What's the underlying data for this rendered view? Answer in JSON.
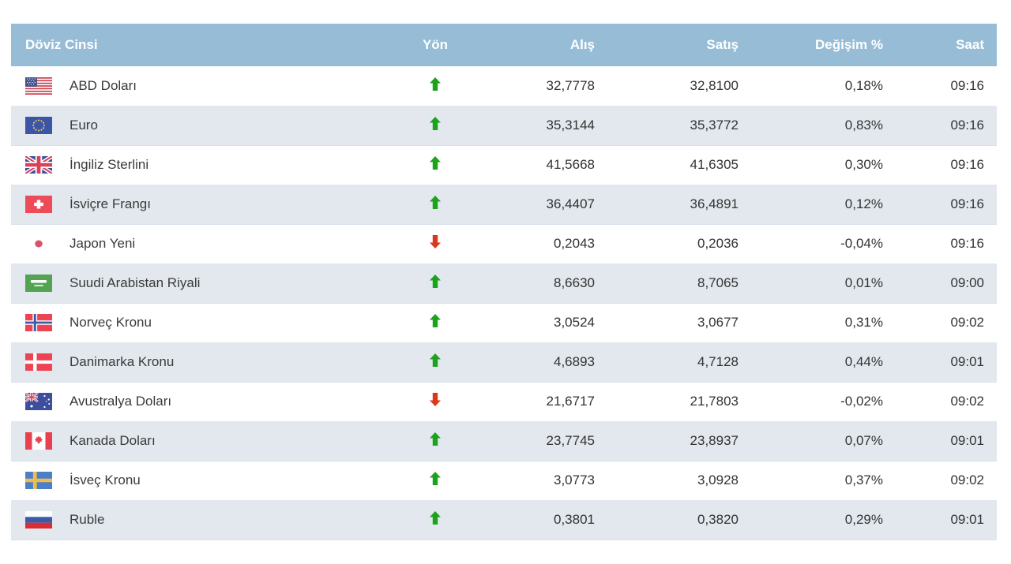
{
  "chart_data": {
    "type": "table",
    "columns": [
      {
        "key": "currency",
        "label": "Döviz Cinsi"
      },
      {
        "key": "direction",
        "label": "Yön"
      },
      {
        "key": "buy",
        "label": "Alış"
      },
      {
        "key": "sell",
        "label": "Satış"
      },
      {
        "key": "change",
        "label": "Değişim %"
      },
      {
        "key": "time",
        "label": "Saat"
      }
    ],
    "rows": [
      {
        "flag": "us",
        "name": "ABD Doları",
        "direction": "up",
        "buy": "32,7778",
        "sell": "32,8100",
        "change": "0,18%",
        "time": "09:16"
      },
      {
        "flag": "eu",
        "name": "Euro",
        "direction": "up",
        "buy": "35,3144",
        "sell": "35,3772",
        "change": "0,83%",
        "time": "09:16"
      },
      {
        "flag": "gb",
        "name": "İngiliz Sterlini",
        "direction": "up",
        "buy": "41,5668",
        "sell": "41,6305",
        "change": "0,30%",
        "time": "09:16"
      },
      {
        "flag": "ch",
        "name": "İsviçre Frangı",
        "direction": "up",
        "buy": "36,4407",
        "sell": "36,4891",
        "change": "0,12%",
        "time": "09:16"
      },
      {
        "flag": "jp",
        "name": "Japon Yeni",
        "direction": "down",
        "buy": "0,2043",
        "sell": "0,2036",
        "change": "-0,04%",
        "time": "09:16"
      },
      {
        "flag": "sa",
        "name": "Suudi Arabistan Riyali",
        "direction": "up",
        "buy": "8,6630",
        "sell": "8,7065",
        "change": "0,01%",
        "time": "09:00"
      },
      {
        "flag": "no",
        "name": "Norveç Kronu",
        "direction": "up",
        "buy": "3,0524",
        "sell": "3,0677",
        "change": "0,31%",
        "time": "09:02"
      },
      {
        "flag": "dk",
        "name": "Danimarka Kronu",
        "direction": "up",
        "buy": "4,6893",
        "sell": "4,7128",
        "change": "0,44%",
        "time": "09:01"
      },
      {
        "flag": "au",
        "name": "Avustralya Doları",
        "direction": "down",
        "buy": "21,6717",
        "sell": "21,7803",
        "change": "-0,02%",
        "time": "09:02"
      },
      {
        "flag": "ca",
        "name": "Kanada Doları",
        "direction": "up",
        "buy": "23,7745",
        "sell": "23,8937",
        "change": "0,07%",
        "time": "09:01"
      },
      {
        "flag": "se",
        "name": "İsveç Kronu",
        "direction": "up",
        "buy": "3,0773",
        "sell": "3,0928",
        "change": "0,37%",
        "time": "09:02"
      },
      {
        "flag": "ru",
        "name": "Ruble",
        "direction": "up",
        "buy": "0,3801",
        "sell": "0,3820",
        "change": "0,29%",
        "time": "09:01"
      }
    ],
    "icons": {
      "up": "arrow-up-icon",
      "down": "arrow-down-icon"
    },
    "layout_hints": {
      "striped": true,
      "header_position": "top"
    }
  },
  "colors": {
    "header_bg": "#96bcd6",
    "header_text": "#ffffff",
    "row_bg": "#ffffff",
    "row_alt_bg": "#e2e8ee",
    "row_text": "#333333",
    "up_arrow": "#1ca31c",
    "down_arrow": "#d9381d"
  }
}
